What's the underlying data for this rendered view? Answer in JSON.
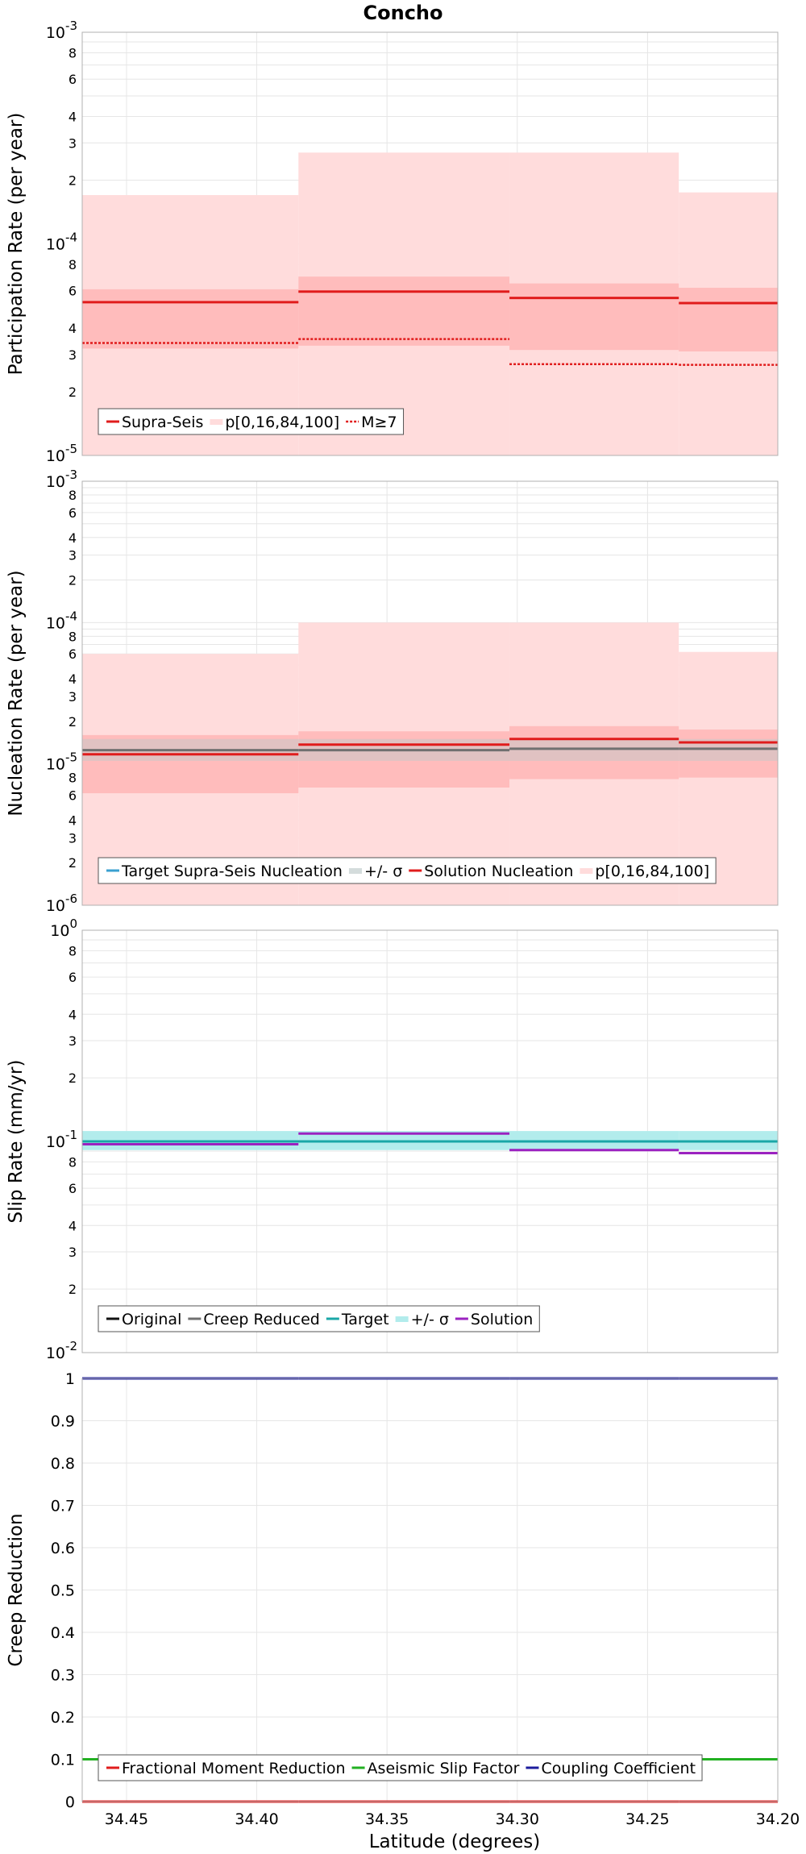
{
  "title": "Concho",
  "xlabel": "Latitude (degrees)",
  "colors": {
    "red": "#e01c1c",
    "pink_band": "#ffdcdc",
    "pink_inner": "#ffbcbc",
    "gray": "#707070",
    "gray_band": "#c7c7c7",
    "teal": "#1aa7a7",
    "teal_band": "#b2ecec",
    "purple": "#9b22c0",
    "green": "#22b022",
    "navy": "#1c1c9c",
    "grid": "#e6e6e6"
  },
  "chart_data": [
    {
      "type": "line",
      "panel": "participation",
      "title": "Concho",
      "ylabel": "Participation Rate (per year)",
      "xlabel": "",
      "xlim": [
        34.467,
        34.2
      ],
      "x_ticks": [
        "34.45",
        "34.40",
        "34.35",
        "34.30",
        "34.25",
        "34.20"
      ],
      "y_scale": "log",
      "ylim": [
        1e-05,
        0.001
      ],
      "grid": true,
      "legend_position": "bottom-left",
      "segments": [
        [
          34.467,
          34.384
        ],
        [
          34.384,
          34.303
        ],
        [
          34.303,
          34.238
        ],
        [
          34.238,
          34.2
        ]
      ],
      "bands": [
        {
          "name": "p[0,16,84,100]",
          "kind": "outer",
          "lows": [
            1e-05,
            1e-05,
            1e-05,
            1e-05
          ],
          "highs": [
            0.00017,
            0.00027,
            0.00027,
            0.000175
          ]
        },
        {
          "name": "p[0,16,84,100]",
          "kind": "inner",
          "lows": [
            3.2e-05,
            3.3e-05,
            3.15e-05,
            3.1e-05
          ],
          "highs": [
            6.1e-05,
            7e-05,
            6.5e-05,
            6.2e-05
          ]
        }
      ],
      "series": [
        {
          "name": "Supra-Seis",
          "style": "solid",
          "values": [
            5.3e-05,
            5.95e-05,
            5.55e-05,
            5.25e-05
          ]
        },
        {
          "name": "M≥7",
          "style": "dotted",
          "values": [
            3.4e-05,
            3.55e-05,
            2.7e-05,
            2.68e-05
          ]
        }
      ],
      "legend": [
        "Supra-Seis",
        "p[0,16,84,100]",
        "M≥7"
      ]
    },
    {
      "type": "line",
      "panel": "nucleation",
      "ylabel": "Nucleation Rate (per year)",
      "xlabel": "",
      "xlim": [
        34.467,
        34.2
      ],
      "y_scale": "log",
      "ylim": [
        1e-06,
        0.001
      ],
      "grid": true,
      "legend_position": "bottom-left",
      "segments": [
        [
          34.467,
          34.384
        ],
        [
          34.384,
          34.303
        ],
        [
          34.303,
          34.238
        ],
        [
          34.238,
          34.2
        ]
      ],
      "bands": [
        {
          "name": "p[0,16,84,100]",
          "kind": "outer",
          "lows": [
            1e-06,
            1e-06,
            1e-06,
            1e-06
          ],
          "highs": [
            6e-05,
            0.0001,
            0.0001,
            6.2e-05
          ]
        },
        {
          "name": "p[0,16,84,100]",
          "kind": "inner",
          "lows": [
            6.2e-06,
            6.8e-06,
            7.8e-06,
            8e-06
          ],
          "highs": [
            1.6e-05,
            1.7e-05,
            1.85e-05,
            1.75e-05
          ]
        },
        {
          "name": "+/- σ",
          "kind": "sigma",
          "lows": [
            1.05e-05,
            1.05e-05,
            1.05e-05,
            1.05e-05
          ],
          "highs": [
            1.5e-05,
            1.5e-05,
            1.5e-05,
            1.5e-05
          ]
        }
      ],
      "series": [
        {
          "name": "Target Supra-Seis Nucleation",
          "style": "solid",
          "values": [
            1.25e-05,
            1.25e-05,
            1.28e-05,
            1.28e-05
          ]
        },
        {
          "name": "Solution Nucleation",
          "style": "solid",
          "values": [
            1.17e-05,
            1.37e-05,
            1.5e-05,
            1.42e-05
          ]
        }
      ],
      "legend": [
        "Target Supra-Seis Nucleation",
        "+/- σ",
        "Solution Nucleation",
        "p[0,16,84,100]"
      ]
    },
    {
      "type": "line",
      "panel": "slip",
      "ylabel": "Slip Rate (mm/yr)",
      "xlabel": "",
      "xlim": [
        34.467,
        34.2
      ],
      "y_scale": "log",
      "ylim": [
        0.01,
        1
      ],
      "grid": true,
      "legend_position": "bottom-left",
      "segments": [
        [
          34.467,
          34.384
        ],
        [
          34.384,
          34.303
        ],
        [
          34.303,
          34.238
        ],
        [
          34.238,
          34.2
        ]
      ],
      "bands": [
        {
          "name": "+/- σ",
          "kind": "sigma",
          "lows": [
            0.091,
            0.091,
            0.091,
            0.091
          ],
          "highs": [
            0.112,
            0.112,
            0.112,
            0.112
          ]
        }
      ],
      "series": [
        {
          "name": "Original",
          "style": "solid",
          "values": [
            0.1,
            0.1,
            0.1,
            0.1
          ]
        },
        {
          "name": "Creep Reduced",
          "style": "solid",
          "values": [
            0.1,
            0.1,
            0.1,
            0.1
          ]
        },
        {
          "name": "Target",
          "style": "solid",
          "values": [
            0.1,
            0.1,
            0.1,
            0.1
          ]
        },
        {
          "name": "Solution",
          "style": "solid",
          "values": [
            0.097,
            0.109,
            0.091,
            0.088
          ]
        }
      ],
      "legend": [
        "Original",
        "Creep Reduced",
        "Target",
        "+/- σ",
        "Solution"
      ]
    },
    {
      "type": "line",
      "panel": "creep",
      "ylabel": "Creep Reduction",
      "xlabel": "Latitude (degrees)",
      "xlim": [
        34.467,
        34.2
      ],
      "y_scale": "linear",
      "ylim": [
        0,
        1
      ],
      "y_ticks": [
        "0",
        "0.1",
        "0.2",
        "0.3",
        "0.4",
        "0.5",
        "0.6",
        "0.7",
        "0.8",
        "0.9",
        "1"
      ],
      "grid": true,
      "legend_position": "bottom-left",
      "segments": [
        [
          34.467,
          34.384
        ],
        [
          34.384,
          34.303
        ],
        [
          34.303,
          34.238
        ],
        [
          34.238,
          34.2
        ]
      ],
      "series": [
        {
          "name": "Fractional Moment Reduction",
          "style": "solid",
          "values": [
            0,
            0,
            0,
            0
          ]
        },
        {
          "name": "Aseismic Slip Factor",
          "style": "solid",
          "values": [
            0.1,
            0.1,
            0.1,
            0.1
          ]
        },
        {
          "name": "Coupling Coefficient",
          "style": "solid",
          "values": [
            1,
            1,
            1,
            1
          ]
        }
      ],
      "legend": [
        "Fractional Moment Reduction",
        "Aseismic Slip Factor",
        "Coupling Coefficient"
      ]
    }
  ]
}
